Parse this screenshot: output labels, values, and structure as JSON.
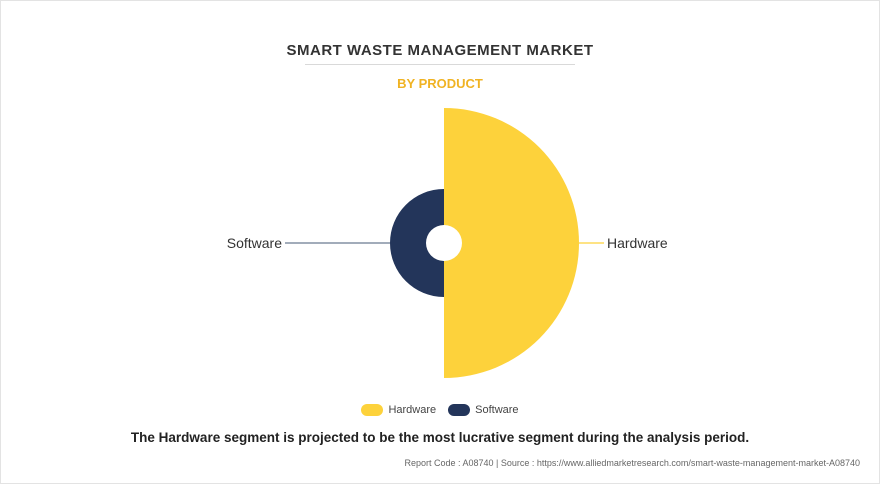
{
  "chart_data": {
    "type": "pie",
    "title": "SMART WASTE MANAGEMENT MARKET",
    "subtitle": "BY PRODUCT",
    "categories": [
      "Hardware",
      "Software"
    ],
    "values": [
      0.5,
      0.5
    ],
    "radius_values": [
      1.0,
      0.4
    ],
    "colors": [
      "#fdd23b",
      "#23355a"
    ],
    "legend_position": "bottom-center",
    "grid": false
  },
  "legend": {
    "items": [
      {
        "label": "Hardware",
        "color": "#fdd23b"
      },
      {
        "label": "Software",
        "color": "#23355a"
      }
    ]
  },
  "caption": "The Hardware segment is projected to be the most lucrative segment during the analysis period.",
  "source": "Report Code : A08740  |  Source : https://www.alliedmarketresearch.com/smart-waste-management-market-A08740"
}
